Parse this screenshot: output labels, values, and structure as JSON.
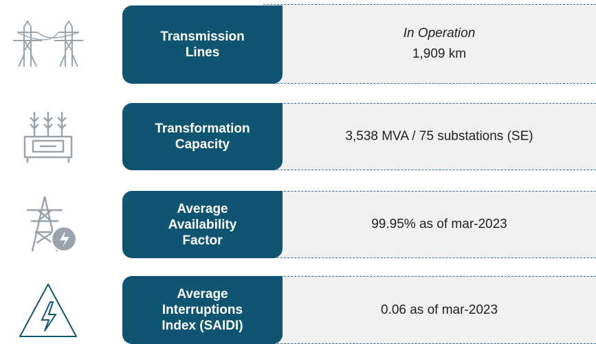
{
  "rows": [
    {
      "label": "Transmission Lines",
      "note": "In Operation",
      "value": "1,909 km"
    },
    {
      "label": "Transformation Capacity",
      "value": "3,538 MVA / 75 substations (SE)"
    },
    {
      "label": "Average Availability Factor",
      "value": "99.95% as of mar-2023"
    },
    {
      "label": "Average Interruptions Index (SAIDI)",
      "value": "0.06 as of mar-2023"
    }
  ]
}
